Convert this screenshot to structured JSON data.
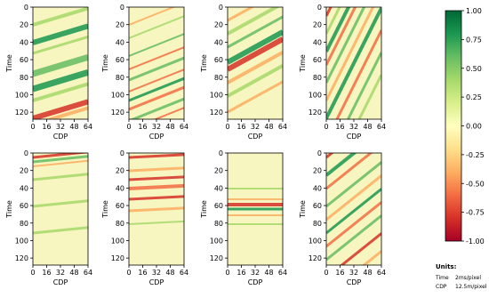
{
  "chart_data": [
    {
      "type": "heatmap",
      "xlabel": "CDP",
      "ylabel": "Time",
      "xlim": [
        0,
        64
      ],
      "ylim": [
        128,
        0
      ],
      "xticks": [
        0,
        16,
        32,
        48,
        64
      ],
      "yticks": [
        0,
        20,
        40,
        60,
        80,
        100,
        120
      ]
    },
    {
      "type": "heatmap",
      "xlabel": "CDP",
      "ylabel": "Time",
      "xlim": [
        0,
        64
      ],
      "ylim": [
        128,
        0
      ],
      "xticks": [
        0,
        16,
        32,
        48,
        64
      ],
      "yticks": [
        0,
        20,
        40,
        60,
        80,
        100,
        120
      ]
    },
    {
      "type": "heatmap",
      "xlabel": "CDP",
      "ylabel": "Time",
      "xlim": [
        0,
        64
      ],
      "ylim": [
        128,
        0
      ],
      "xticks": [
        0,
        16,
        32,
        48,
        64
      ],
      "yticks": [
        0,
        20,
        40,
        60,
        80,
        100,
        120
      ]
    },
    {
      "type": "heatmap",
      "xlabel": "CDP",
      "ylabel": "Time",
      "xlim": [
        0,
        64
      ],
      "ylim": [
        128,
        0
      ],
      "xticks": [
        0,
        16,
        32,
        48,
        64
      ],
      "yticks": [
        0,
        20,
        40,
        60,
        80,
        100,
        120
      ]
    },
    {
      "type": "heatmap",
      "xlabel": "CDP",
      "ylabel": "Time",
      "xlim": [
        0,
        64
      ],
      "ylim": [
        128,
        0
      ],
      "xticks": [
        0,
        16,
        32,
        48,
        64
      ],
      "yticks": [
        0,
        20,
        40,
        60,
        80,
        100,
        120
      ]
    },
    {
      "type": "heatmap",
      "xlabel": "CDP",
      "ylabel": "Time",
      "xlim": [
        0,
        64
      ],
      "ylim": [
        128,
        0
      ],
      "xticks": [
        0,
        16,
        32,
        48,
        64
      ],
      "yticks": [
        0,
        20,
        40,
        60,
        80,
        100,
        120
      ]
    },
    {
      "type": "heatmap",
      "xlabel": "CDP",
      "ylabel": "Time",
      "xlim": [
        0,
        64
      ],
      "ylim": [
        128,
        0
      ],
      "xticks": [
        0,
        16,
        32,
        48,
        64
      ],
      "yticks": [
        0,
        20,
        40,
        60,
        80,
        100,
        120
      ]
    },
    {
      "type": "heatmap",
      "xlabel": "CDP",
      "ylabel": "Time",
      "xlim": [
        0,
        64
      ],
      "ylim": [
        128,
        0
      ],
      "xticks": [
        0,
        16,
        32,
        48,
        64
      ],
      "yticks": [
        0,
        20,
        40,
        60,
        80,
        100,
        120
      ]
    },
    {
      "type": "colorbar",
      "colormap": "RdYlGn",
      "colors": [
        "#a50026",
        "#d73027",
        "#f46d43",
        "#fdae61",
        "#fee08b",
        "#ffffbf",
        "#d9ef8b",
        "#a6d96a",
        "#66bd63",
        "#1a9850",
        "#006837"
      ],
      "ylim": [
        -1,
        1
      ],
      "yticks": [
        {
          "value": 1,
          "label": "1.00"
        },
        {
          "value": 0.75,
          "label": "0.75"
        },
        {
          "value": 0.5,
          "label": "0.50"
        },
        {
          "value": 0.25,
          "label": "0.25"
        },
        {
          "value": 0,
          "label": "0.00"
        },
        {
          "value": -0.25,
          "label": "-0.25"
        },
        {
          "value": -0.5,
          "label": "-0.50"
        },
        {
          "value": -0.75,
          "label": "-0.75"
        },
        {
          "value": -1,
          "label": "-1.00"
        }
      ]
    }
  ],
  "units": {
    "title": "Units:",
    "rows": [
      [
        "Time",
        "2ms/pixel"
      ],
      [
        "CDP",
        "12.5m/pixel"
      ]
    ]
  }
}
